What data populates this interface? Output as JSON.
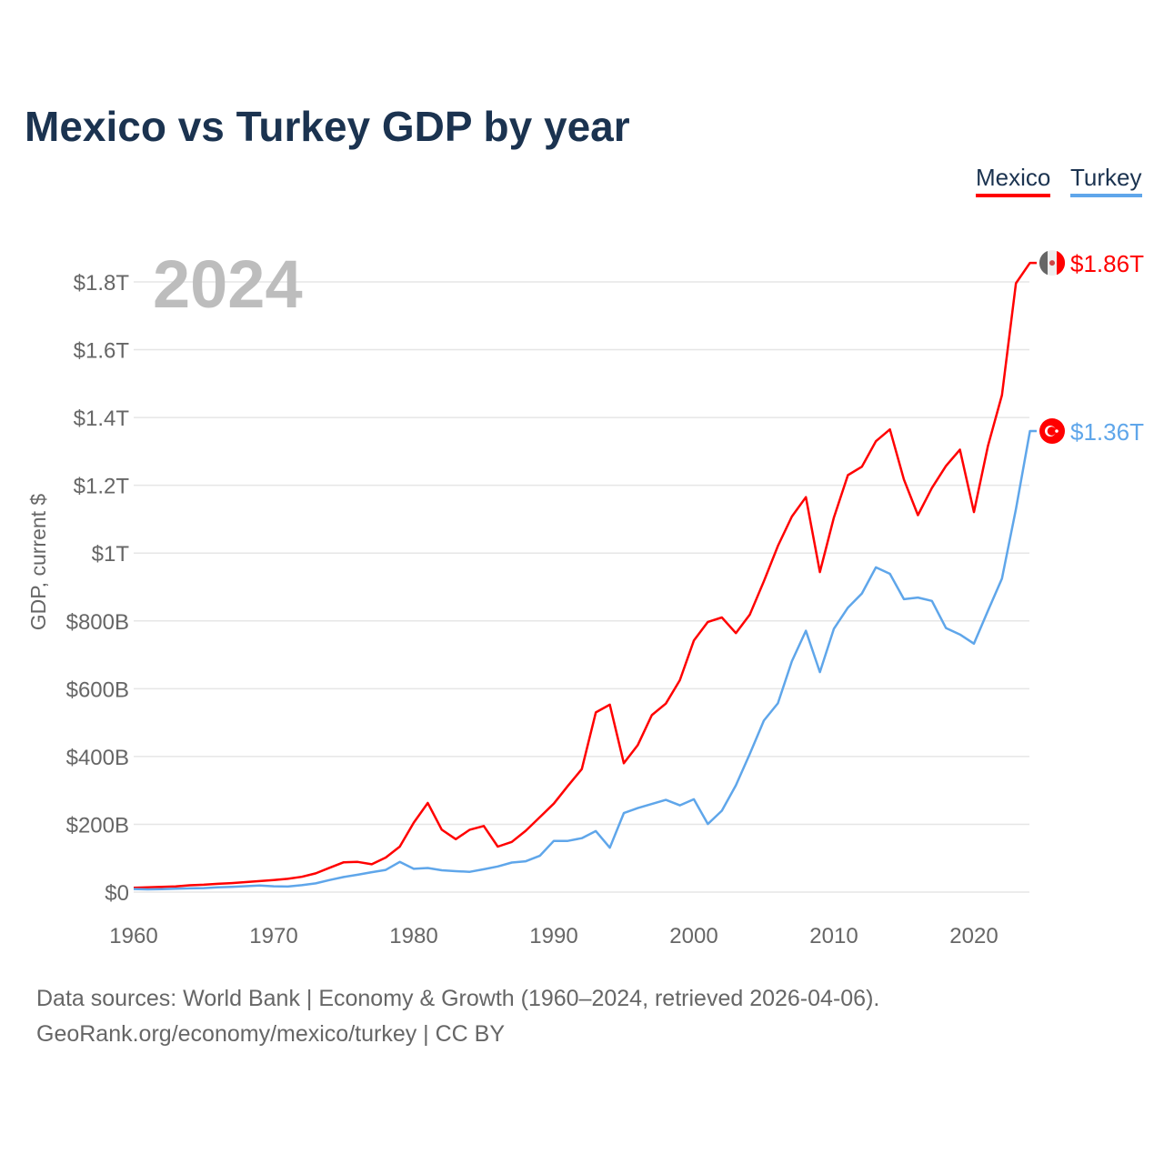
{
  "title": "Mexico vs Turkey GDP by year",
  "footer": {
    "line1": "Data sources: World Bank | Economy & Growth (1960–2024, retrieved 2026-04-06).",
    "line2": "GeoRank.org/economy/mexico/turkey | CC BY"
  },
  "chart_data": {
    "type": "line",
    "title": "Mexico vs Turkey GDP by year",
    "xlabel": "",
    "ylabel": "GDP, current $",
    "year_label": "2024",
    "xlim": [
      1960,
      2024
    ],
    "ylim": [
      0,
      1900
    ],
    "y_unit": "billions USD",
    "grid": true,
    "legend_position": "top-right",
    "x_ticks": [
      {
        "v": 1960,
        "label": "1960"
      },
      {
        "v": 1970,
        "label": "1970"
      },
      {
        "v": 1980,
        "label": "1980"
      },
      {
        "v": 1990,
        "label": "1990"
      },
      {
        "v": 2000,
        "label": "2000"
      },
      {
        "v": 2010,
        "label": "2010"
      },
      {
        "v": 2020,
        "label": "2020"
      }
    ],
    "y_ticks": [
      {
        "v": 0,
        "label": "$0"
      },
      {
        "v": 200,
        "label": "$200B"
      },
      {
        "v": 400,
        "label": "$400B"
      },
      {
        "v": 600,
        "label": "$600B"
      },
      {
        "v": 800,
        "label": "$800B"
      },
      {
        "v": 1000,
        "label": "$1T"
      },
      {
        "v": 1200,
        "label": "$1.2T"
      },
      {
        "v": 1400,
        "label": "$1.4T"
      },
      {
        "v": 1600,
        "label": "$1.6T"
      },
      {
        "v": 1800,
        "label": "$1.8T"
      }
    ],
    "x_start": 1960,
    "series": [
      {
        "name": "Mexico",
        "color": "#ff0000",
        "flag": "mexico-flag",
        "end_label": "$1.86T",
        "values": [
          13,
          14.2,
          15.2,
          16.9,
          20.1,
          21.8,
          24.3,
          26.6,
          29.4,
          32.5,
          35.5,
          39.2,
          45.2,
          55.3,
          72,
          88,
          89,
          82,
          102,
          134,
          205,
          263,
          184,
          156,
          184,
          195,
          134,
          148,
          181,
          221,
          261,
          313,
          363,
          530,
          553,
          380,
          434,
          522,
          556,
          625,
          742,
          797,
          810,
          764,
          819,
          917,
          1021,
          1108,
          1165,
          944,
          1105,
          1230,
          1255,
          1330,
          1365,
          1217,
          1112,
          1192,
          1257,
          1305,
          1121,
          1316,
          1466,
          1796,
          1856
        ]
      },
      {
        "name": "Turkey",
        "color": "#5fa6ea",
        "flag": "turkey-flag",
        "end_label": "$1.36T",
        "values": [
          9,
          8,
          8.9,
          10.1,
          10.9,
          11.9,
          14,
          15.6,
          17.5,
          19.5,
          17.1,
          16.4,
          20.4,
          25.7,
          35.6,
          44.6,
          51.3,
          58.7,
          65.5,
          89,
          68.8,
          71,
          64.5,
          61.7,
          59.9,
          67.2,
          75.7,
          87.2,
          90.9,
          107,
          151,
          151,
          159,
          180,
          131,
          233,
          248,
          260,
          272,
          256,
          274,
          201,
          240,
          315,
          408,
          506,
          557,
          681,
          771,
          649,
          777,
          839,
          881,
          958,
          939,
          864,
          869,
          859,
          779,
          760,
          733,
          830,
          925,
          1130,
          1360
        ]
      }
    ]
  }
}
